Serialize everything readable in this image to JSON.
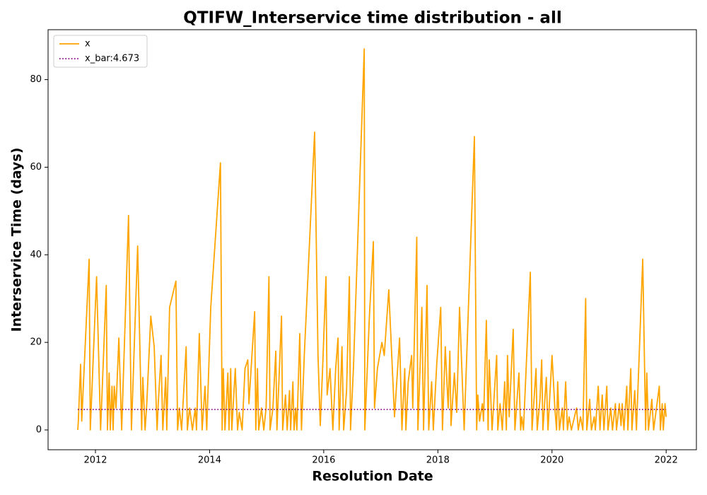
{
  "chart_data": {
    "type": "line",
    "title": "QTIFW_Interservice time distribution - all",
    "xlabel": "Resolution Date",
    "ylabel": "Interservice Time (days)",
    "xlim": [
      2011.17,
      2022.53
    ],
    "ylim": [
      -4.52,
      91.4
    ],
    "xticks": [
      2012,
      2014,
      2016,
      2018,
      2020,
      2022
    ],
    "yticks": [
      0,
      20,
      40,
      60,
      80
    ],
    "legend": "upper left",
    "series": [
      {
        "name": "x",
        "color": "#ffa500",
        "style": "solid",
        "x": [
          2011.69,
          2011.7,
          2011.74,
          2011.76,
          2011.89,
          2011.91,
          2012.02,
          2012.09,
          2012.19,
          2012.21,
          2012.24,
          2012.26,
          2012.29,
          2012.31,
          2012.33,
          2012.36,
          2012.41,
          2012.46,
          2012.58,
          2012.63,
          2012.74,
          2012.81,
          2012.83,
          2012.87,
          2012.9,
          2012.97,
          2013.03,
          2013.08,
          2013.1,
          2013.15,
          2013.18,
          2013.23,
          2013.25,
          2013.3,
          2013.41,
          2013.44,
          2013.47,
          2013.51,
          2013.59,
          2013.61,
          2013.65,
          2013.7,
          2013.75,
          2013.77,
          2013.82,
          2013.87,
          2013.92,
          2013.95,
          2014.02,
          2014.19,
          2014.22,
          2014.24,
          2014.27,
          2014.32,
          2014.34,
          2014.37,
          2014.39,
          2014.45,
          2014.49,
          2014.52,
          2014.57,
          2014.62,
          2014.67,
          2014.69,
          2014.79,
          2014.81,
          2014.84,
          2014.86,
          2014.91,
          2014.95,
          2014.99,
          2015.04,
          2015.06,
          2015.11,
          2015.16,
          2015.18,
          2015.26,
          2015.28,
          2015.33,
          2015.36,
          2015.4,
          2015.42,
          2015.46,
          2015.48,
          2015.51,
          2015.53,
          2015.58,
          2015.61,
          2015.66,
          2015.84,
          2015.9,
          2015.94,
          2015.98,
          2016.04,
          2016.06,
          2016.11,
          2016.16,
          2016.21,
          2016.25,
          2016.27,
          2016.32,
          2016.35,
          2016.4,
          2016.45,
          2016.47,
          2016.52,
          2016.71,
          2016.72,
          2016.8,
          2016.87,
          2016.89,
          2016.94,
          2017.02,
          2017.06,
          2017.14,
          2017.24,
          2017.33,
          2017.37,
          2017.42,
          2017.44,
          2017.48,
          2017.54,
          2017.56,
          2017.63,
          2017.65,
          2017.69,
          2017.72,
          2017.75,
          2017.81,
          2017.84,
          2017.89,
          2017.92,
          2017.98,
          2018.05,
          2018.08,
          2018.13,
          2018.18,
          2018.21,
          2018.23,
          2018.29,
          2018.33,
          2018.38,
          2018.46,
          2018.64,
          2018.68,
          2018.7,
          2018.73,
          2018.78,
          2018.8,
          2018.85,
          2018.88,
          2018.9,
          2018.95,
          2019.03,
          2019.05,
          2019.09,
          2019.13,
          2019.17,
          2019.2,
          2019.22,
          2019.25,
          2019.32,
          2019.35,
          2019.42,
          2019.45,
          2019.47,
          2019.5,
          2019.62,
          2019.65,
          2019.72,
          2019.74,
          2019.79,
          2019.82,
          2019.84,
          2019.9,
          2019.93,
          2020.0,
          2020.05,
          2020.08,
          2020.1,
          2020.13,
          2020.18,
          2020.2,
          2020.24,
          2020.27,
          2020.3,
          2020.34,
          2020.43,
          2020.46,
          2020.5,
          2020.54,
          2020.59,
          2020.61,
          2020.66,
          2020.69,
          2020.74,
          2020.76,
          2020.81,
          2020.84,
          2020.88,
          2020.91,
          2020.96,
          2020.98,
          2021.03,
          2021.06,
          2021.11,
          2021.13,
          2021.18,
          2021.21,
          2021.23,
          2021.26,
          2021.31,
          2021.33,
          2021.38,
          2021.4,
          2021.45,
          2021.48,
          2021.59,
          2021.64,
          2021.66,
          2021.69,
          2021.75,
          2021.78,
          2021.83,
          2021.88,
          2021.9,
          2021.93,
          2021.95,
          2021.98,
          2022.0
        ],
        "values": [
          0,
          2,
          15,
          2,
          39,
          0,
          35,
          0,
          33,
          0,
          13,
          0,
          10,
          0,
          10,
          5,
          21,
          0,
          49,
          0,
          42,
          0,
          12,
          0,
          6,
          26,
          19,
          0,
          6,
          17,
          0,
          12,
          0,
          28,
          34,
          0,
          5,
          0,
          19,
          0,
          5,
          0,
          5,
          0,
          22,
          0,
          10,
          0,
          28,
          61,
          0,
          14,
          0,
          13,
          0,
          14,
          0,
          14,
          0,
          4,
          0,
          14,
          16,
          6,
          27,
          0,
          14,
          0,
          5,
          0,
          5,
          35,
          0,
          5,
          18,
          0,
          26,
          0,
          8,
          0,
          9,
          0,
          11,
          0,
          5,
          0,
          22,
          0,
          17,
          68,
          17,
          1,
          14,
          35,
          8,
          14,
          0,
          14,
          21,
          0,
          19,
          0,
          9,
          35,
          0,
          14,
          87,
          0,
          26,
          43,
          5,
          14,
          20,
          17,
          32,
          3,
          21,
          0,
          14,
          0,
          11,
          17,
          5,
          44,
          0,
          15,
          28,
          0,
          33,
          0,
          11,
          0,
          15,
          28,
          0,
          19,
          5,
          18,
          1,
          13,
          4,
          28,
          0,
          67,
          0,
          8,
          2,
          6,
          2,
          25,
          0,
          16,
          0,
          17,
          0,
          6,
          0,
          11,
          0,
          17,
          3,
          23,
          0,
          13,
          0,
          3,
          0,
          36,
          0,
          14,
          0,
          7,
          16,
          0,
          12,
          0,
          17,
          5,
          0,
          11,
          0,
          5,
          0,
          11,
          0,
          3,
          0,
          5,
          0,
          3,
          0,
          30,
          0,
          7,
          0,
          3,
          0,
          10,
          0,
          8,
          0,
          10,
          0,
          5,
          0,
          6,
          0,
          6,
          1,
          6,
          0,
          10,
          0,
          14,
          0,
          9,
          0,
          39,
          0,
          13,
          0,
          7,
          0,
          5,
          10,
          0,
          6,
          0,
          6,
          3
        ]
      },
      {
        "name": "x_bar:4.673",
        "color": "#800080",
        "style": "dotted",
        "x": [
          2011.69,
          2022.0
        ],
        "values": [
          4.673,
          4.673
        ]
      }
    ]
  }
}
